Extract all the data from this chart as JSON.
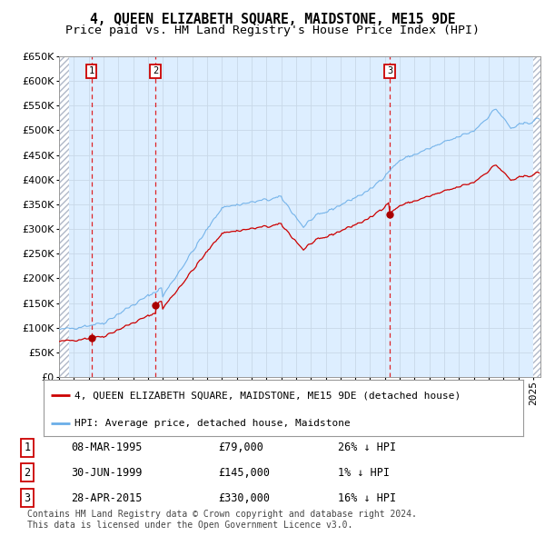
{
  "title": "4, QUEEN ELIZABETH SQUARE, MAIDSTONE, ME15 9DE",
  "subtitle": "Price paid vs. HM Land Registry's House Price Index (HPI)",
  "ylim": [
    0,
    650000
  ],
  "yticks": [
    0,
    50000,
    100000,
    150000,
    200000,
    250000,
    300000,
    350000,
    400000,
    450000,
    500000,
    550000,
    600000,
    650000
  ],
  "xlim_start": 1993.0,
  "xlim_end": 2025.5,
  "sale_dates": [
    1995.18,
    1999.5,
    2015.32
  ],
  "sale_prices": [
    79000,
    145000,
    330000
  ],
  "sale_labels": [
    "1",
    "2",
    "3"
  ],
  "hpi_line_color": "#6aaee8",
  "price_line_color": "#cc0000",
  "sale_marker_color": "#aa0000",
  "vline_color": "#dd0000",
  "grid_color": "#c8d8e8",
  "bg_color": "#ddeeff",
  "hatch_color": "#b0b8c8",
  "legend_line1": "4, QUEEN ELIZABETH SQUARE, MAIDSTONE, ME15 9DE (detached house)",
  "legend_line2": "HPI: Average price, detached house, Maidstone",
  "table_rows": [
    [
      "1",
      "08-MAR-1995",
      "£79,000",
      "26% ↓ HPI"
    ],
    [
      "2",
      "30-JUN-1999",
      "£145,000",
      "1% ↓ HPI"
    ],
    [
      "3",
      "28-APR-2015",
      "£330,000",
      "16% ↓ HPI"
    ]
  ],
  "footer": "Contains HM Land Registry data © Crown copyright and database right 2024.\nThis data is licensed under the Open Government Licence v3.0.",
  "title_fontsize": 10.5,
  "subtitle_fontsize": 9.5,
  "tick_fontsize": 8,
  "legend_fontsize": 8,
  "table_fontsize": 8.5,
  "footer_fontsize": 7
}
